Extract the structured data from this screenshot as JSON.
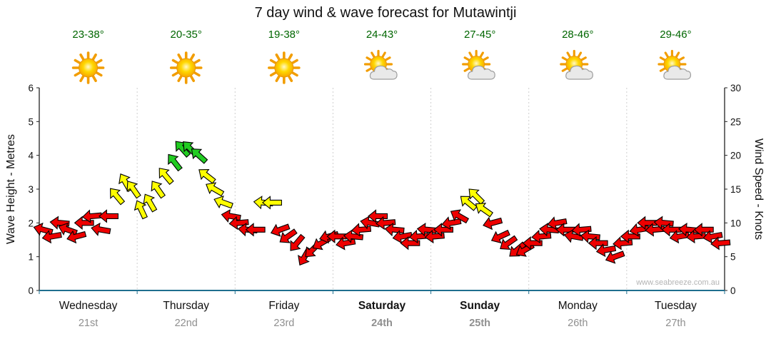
{
  "title": "7 day wind & wave forecast for Mutawintji",
  "watermark": "www.seabreeze.com.au",
  "left_axis": {
    "label": "Wave Height - Metres",
    "ticks": [
      0,
      1,
      2,
      3,
      4,
      5,
      6
    ]
  },
  "right_axis": {
    "label": "Wind Speed - Knots",
    "ticks": [
      0,
      5,
      10,
      15,
      20,
      25,
      30
    ]
  },
  "days": [
    {
      "name": "Wednesday",
      "date": "21st",
      "temp": "23-38°",
      "icon": "sunny",
      "bold": false
    },
    {
      "name": "Thursday",
      "date": "22nd",
      "temp": "20-35°",
      "icon": "sunny",
      "bold": false
    },
    {
      "name": "Friday",
      "date": "23rd",
      "temp": "19-38°",
      "icon": "sunny",
      "bold": false
    },
    {
      "name": "Saturday",
      "date": "24th",
      "temp": "24-43°",
      "icon": "partly-cloudy",
      "bold": true
    },
    {
      "name": "Sunday",
      "date": "25th",
      "temp": "27-45°",
      "icon": "partly-cloudy",
      "bold": true
    },
    {
      "name": "Monday",
      "date": "26th",
      "temp": "28-46°",
      "icon": "partly-cloudy",
      "bold": false
    },
    {
      "name": "Tuesday",
      "date": "27th",
      "temp": "29-46°",
      "icon": "partly-cloudy",
      "bold": false
    }
  ],
  "chart_data": {
    "type": "wind-arrows",
    "title": "7 day wind & wave forecast for Mutawintji",
    "ylabel_left": "Wave Height - Metres",
    "ylabel_right": "Wind Speed - Knots",
    "ylim_left": [
      0,
      6
    ],
    "ylim_right": [
      0,
      30
    ],
    "grid": "vertical-day-boundaries",
    "colors": {
      "red": "#ee0000",
      "yellow": "#ffff00",
      "green": "#22cc22"
    },
    "color_thresholds": {
      "yellow_min_knots": 12,
      "green_min_knots": 19
    },
    "point_format": [
      "time_days",
      "wind_knots",
      "arrow_rotation_deg"
    ],
    "points": [
      [
        0.04,
        9,
        195
      ],
      [
        0.13,
        8,
        170
      ],
      [
        0.21,
        10,
        185
      ],
      [
        0.29,
        9,
        200
      ],
      [
        0.38,
        8,
        165
      ],
      [
        0.46,
        10,
        180
      ],
      [
        0.54,
        11,
        175
      ],
      [
        0.63,
        9,
        190
      ],
      [
        0.71,
        11,
        180
      ],
      [
        0.79,
        14,
        -130
      ],
      [
        0.88,
        16,
        -120
      ],
      [
        0.96,
        15,
        -125
      ],
      [
        1.04,
        12,
        -115
      ],
      [
        1.13,
        13,
        -120
      ],
      [
        1.21,
        15,
        -125
      ],
      [
        1.29,
        17,
        -130
      ],
      [
        1.38,
        19,
        -128
      ],
      [
        1.46,
        21,
        -132
      ],
      [
        1.54,
        21,
        -135
      ],
      [
        1.63,
        20,
        -138
      ],
      [
        1.71,
        17,
        -142
      ],
      [
        1.79,
        15,
        -150
      ],
      [
        1.88,
        13,
        -160
      ],
      [
        1.96,
        11,
        -170
      ],
      [
        2.04,
        10,
        175
      ],
      [
        2.13,
        9,
        185
      ],
      [
        2.21,
        9,
        180
      ],
      [
        2.29,
        13,
        185
      ],
      [
        2.38,
        13,
        180
      ],
      [
        2.46,
        9,
        160
      ],
      [
        2.54,
        8,
        145
      ],
      [
        2.63,
        7,
        130
      ],
      [
        2.71,
        5,
        120
      ],
      [
        2.79,
        6,
        135
      ],
      [
        2.88,
        7,
        150
      ],
      [
        2.96,
        8,
        165
      ],
      [
        3.04,
        8,
        180
      ],
      [
        3.13,
        7,
        170
      ],
      [
        3.21,
        8,
        185
      ],
      [
        3.29,
        9,
        175
      ],
      [
        3.38,
        10,
        190
      ],
      [
        3.46,
        11,
        180
      ],
      [
        3.54,
        10,
        175
      ],
      [
        3.63,
        9,
        185
      ],
      [
        3.71,
        8,
        170
      ],
      [
        3.79,
        7,
        180
      ],
      [
        3.88,
        8,
        175
      ],
      [
        3.96,
        9,
        185
      ],
      [
        4.04,
        8,
        175
      ],
      [
        4.13,
        9,
        180
      ],
      [
        4.21,
        10,
        170
      ],
      [
        4.29,
        11,
        -150
      ],
      [
        4.38,
        13,
        -140
      ],
      [
        4.46,
        14,
        -135
      ],
      [
        4.54,
        12,
        -145
      ],
      [
        4.63,
        10,
        165
      ],
      [
        4.71,
        8,
        155
      ],
      [
        4.79,
        7,
        145
      ],
      [
        4.88,
        6,
        140
      ],
      [
        4.96,
        6,
        150
      ],
      [
        5.04,
        7,
        180
      ],
      [
        5.13,
        8,
        175
      ],
      [
        5.21,
        9,
        185
      ],
      [
        5.29,
        10,
        170
      ],
      [
        5.38,
        9,
        180
      ],
      [
        5.46,
        8,
        190
      ],
      [
        5.54,
        9,
        175
      ],
      [
        5.63,
        8,
        185
      ],
      [
        5.71,
        7,
        180
      ],
      [
        5.79,
        6,
        170
      ],
      [
        5.88,
        5,
        160
      ],
      [
        5.96,
        7,
        175
      ],
      [
        6.04,
        8,
        180
      ],
      [
        6.13,
        9,
        170
      ],
      [
        6.21,
        10,
        180
      ],
      [
        6.29,
        9,
        175
      ],
      [
        6.38,
        10,
        185
      ],
      [
        6.46,
        9,
        180
      ],
      [
        6.54,
        8,
        170
      ],
      [
        6.63,
        9,
        185
      ],
      [
        6.71,
        8,
        175
      ],
      [
        6.79,
        9,
        180
      ],
      [
        6.88,
        8,
        170
      ],
      [
        6.96,
        7,
        175
      ]
    ]
  }
}
